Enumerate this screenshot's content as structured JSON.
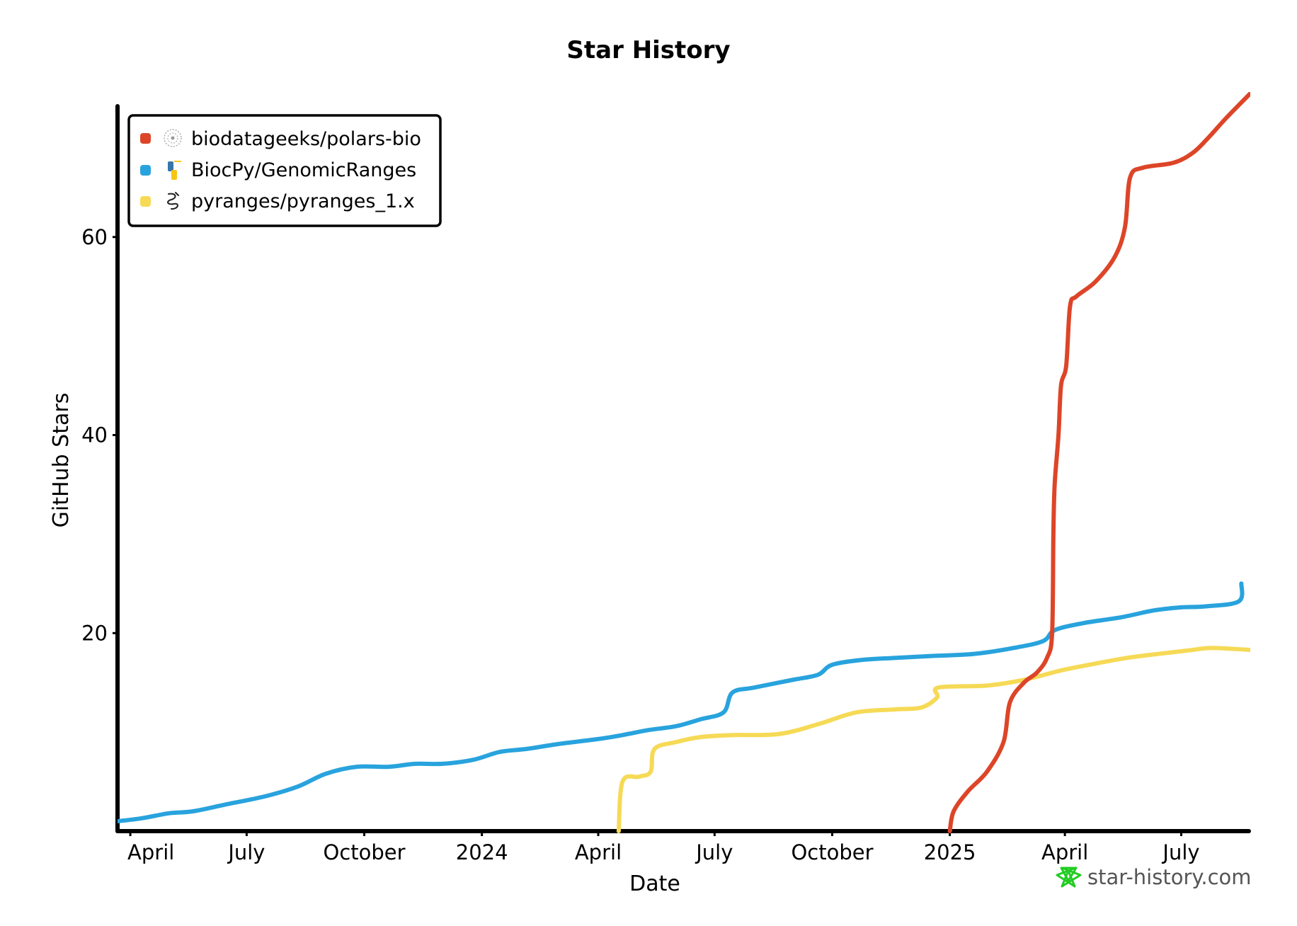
{
  "chart_data": {
    "type": "line",
    "title": "Star History",
    "xlabel": "Date",
    "ylabel": "GitHub Stars",
    "x_range": [
      "2023-03-22",
      "2025-08-24"
    ],
    "ylim": [
      0,
      75
    ],
    "y_ticks": [
      20,
      40,
      60
    ],
    "x_ticks": [
      {
        "label": "April",
        "date": "2023-04-01"
      },
      {
        "label": "July",
        "date": "2023-07-01"
      },
      {
        "label": "October",
        "date": "2023-10-01"
      },
      {
        "label": "2024",
        "date": "2024-01-01"
      },
      {
        "label": "April",
        "date": "2024-04-01"
      },
      {
        "label": "July",
        "date": "2024-07-01"
      },
      {
        "label": "October",
        "date": "2024-10-01"
      },
      {
        "label": "2025",
        "date": "2025-01-01"
      },
      {
        "label": "April",
        "date": "2025-04-01"
      },
      {
        "label": "July",
        "date": "2025-07-01"
      }
    ],
    "legend_position": "top-left",
    "grid": false,
    "series": [
      {
        "name": "biodatageeks/polars-bio",
        "color": "#dd4528",
        "icon": "polars-bio-avatar-icon",
        "points": [
          [
            "2025-01-01",
            0
          ],
          [
            "2025-01-04",
            2
          ],
          [
            "2025-01-15",
            4
          ],
          [
            "2025-01-30",
            6
          ],
          [
            "2025-02-12",
            9
          ],
          [
            "2025-02-17",
            13
          ],
          [
            "2025-02-28",
            15
          ],
          [
            "2025-03-10",
            16
          ],
          [
            "2025-03-18",
            17.5
          ],
          [
            "2025-03-22",
            20
          ],
          [
            "2025-03-23",
            30
          ],
          [
            "2025-03-24",
            35
          ],
          [
            "2025-03-27",
            40
          ],
          [
            "2025-03-29",
            45
          ],
          [
            "2025-04-02",
            47
          ],
          [
            "2025-04-05",
            53
          ],
          [
            "2025-04-10",
            54
          ],
          [
            "2025-04-25",
            55.5
          ],
          [
            "2025-05-10",
            58
          ],
          [
            "2025-05-18",
            61
          ],
          [
            "2025-05-22",
            66
          ],
          [
            "2025-06-01",
            67
          ],
          [
            "2025-06-25",
            67.5
          ],
          [
            "2025-07-10",
            68.5
          ],
          [
            "2025-07-22",
            70
          ],
          [
            "2025-08-05",
            72
          ],
          [
            "2025-08-24",
            74.5
          ]
        ]
      },
      {
        "name": "BiocPy/GenomicRanges",
        "color": "#28a3dd",
        "icon": "python-logo-icon",
        "points": [
          [
            "2023-03-22",
            1
          ],
          [
            "2023-04-10",
            1.3
          ],
          [
            "2023-05-01",
            1.8
          ],
          [
            "2023-05-20",
            2
          ],
          [
            "2023-06-15",
            2.7
          ],
          [
            "2023-07-15",
            3.5
          ],
          [
            "2023-08-10",
            4.5
          ],
          [
            "2023-09-01",
            5.8
          ],
          [
            "2023-09-25",
            6.5
          ],
          [
            "2023-10-20",
            6.5
          ],
          [
            "2023-11-10",
            6.8
          ],
          [
            "2023-12-01",
            6.8
          ],
          [
            "2023-12-25",
            7.2
          ],
          [
            "2024-01-15",
            8
          ],
          [
            "2024-02-05",
            8.3
          ],
          [
            "2024-03-01",
            8.8
          ],
          [
            "2024-04-01",
            9.3
          ],
          [
            "2024-04-20",
            9.7
          ],
          [
            "2024-05-10",
            10.2
          ],
          [
            "2024-06-01",
            10.6
          ],
          [
            "2024-06-20",
            11.3
          ],
          [
            "2024-07-08",
            12
          ],
          [
            "2024-07-15",
            14
          ],
          [
            "2024-08-01",
            14.5
          ],
          [
            "2024-09-01",
            15.3
          ],
          [
            "2024-09-20",
            15.8
          ],
          [
            "2024-10-01",
            16.8
          ],
          [
            "2024-10-25",
            17.3
          ],
          [
            "2024-11-20",
            17.5
          ],
          [
            "2024-12-20",
            17.7
          ],
          [
            "2025-01-20",
            17.9
          ],
          [
            "2025-02-20",
            18.5
          ],
          [
            "2025-03-15",
            19.2
          ],
          [
            "2025-03-24",
            20.3
          ],
          [
            "2025-04-15",
            21
          ],
          [
            "2025-05-15",
            21.6
          ],
          [
            "2025-06-10",
            22.3
          ],
          [
            "2025-07-01",
            22.6
          ],
          [
            "2025-07-20",
            22.7
          ],
          [
            "2025-08-15",
            23.2
          ],
          [
            "2025-08-17",
            25
          ]
        ]
      },
      {
        "name": "pyranges/pyranges_1.x",
        "color": "#f6da56",
        "icon": "pyranges-snake-icon",
        "points": [
          [
            "2024-04-17",
            0
          ],
          [
            "2024-04-20",
            5
          ],
          [
            "2024-05-03",
            5.5
          ],
          [
            "2024-05-12",
            6
          ],
          [
            "2024-05-15",
            8.3
          ],
          [
            "2024-06-01",
            9
          ],
          [
            "2024-06-20",
            9.5
          ],
          [
            "2024-07-15",
            9.7
          ],
          [
            "2024-08-20",
            9.8
          ],
          [
            "2024-09-20",
            10.8
          ],
          [
            "2024-10-20",
            12
          ],
          [
            "2024-11-20",
            12.3
          ],
          [
            "2024-12-10",
            12.5
          ],
          [
            "2024-12-22",
            13.5
          ],
          [
            "2024-12-23",
            14.5
          ],
          [
            "2025-01-30",
            14.7
          ],
          [
            "2025-03-01",
            15.3
          ],
          [
            "2025-03-28",
            16.2
          ],
          [
            "2025-04-20",
            16.8
          ],
          [
            "2025-05-20",
            17.5
          ],
          [
            "2025-06-20",
            18
          ],
          [
            "2025-07-10",
            18.3
          ],
          [
            "2025-07-25",
            18.5
          ],
          [
            "2025-08-24",
            18.3
          ]
        ]
      }
    ]
  },
  "watermark": {
    "text": "star-history.com",
    "icon": "star-history-logo-icon",
    "icon_color": "#22cc22"
  }
}
